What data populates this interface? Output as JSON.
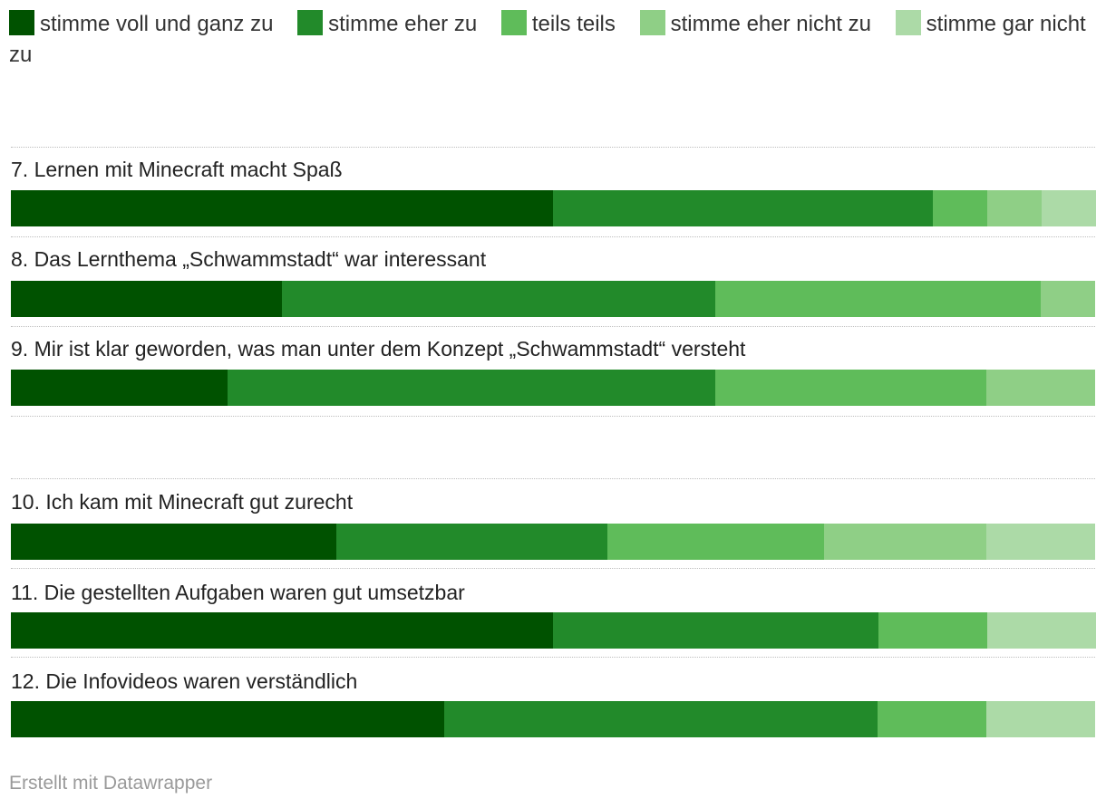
{
  "chart_data": {
    "type": "bar",
    "orientation": "horizontal",
    "stacked": true,
    "normalized": true,
    "series": [
      {
        "name": "stimme voll und ganz zu",
        "color": "#005200"
      },
      {
        "name": "stimme eher zu",
        "color": "#228a2a"
      },
      {
        "name": "teils teils",
        "color": "#5fbc5a"
      },
      {
        "name": "stimme eher nicht zu",
        "color": "#8fcf86"
      },
      {
        "name": "stimme gar nicht zu",
        "color": "#acdaa7"
      }
    ],
    "rows": [
      {
        "label": "7. Lernen mit Minecraft macht Spaß",
        "values": [
          50,
          35,
          5,
          5,
          5
        ]
      },
      {
        "label": "8. Das Lernthema „Schwammstadt“ war interessant",
        "values": [
          25,
          40,
          30,
          5,
          0
        ]
      },
      {
        "label": "9. Mir ist klar geworden, was man unter dem Konzept „Schwammstadt“ versteht",
        "values": [
          20,
          45,
          25,
          10,
          0
        ]
      },
      {
        "label": "10. Ich kam mit Minecraft gut zurecht",
        "values": [
          30,
          25,
          20,
          15,
          10
        ]
      },
      {
        "label": "11. Die gestellten Aufgaben waren gut umsetzbar",
        "values": [
          50,
          30,
          10,
          0,
          10
        ]
      },
      {
        "label": "12. Die Infovideos waren verständlich",
        "values": [
          40,
          40,
          10,
          0,
          10
        ]
      }
    ]
  },
  "footer": {
    "credit": "Erstellt mit Datawrapper"
  }
}
